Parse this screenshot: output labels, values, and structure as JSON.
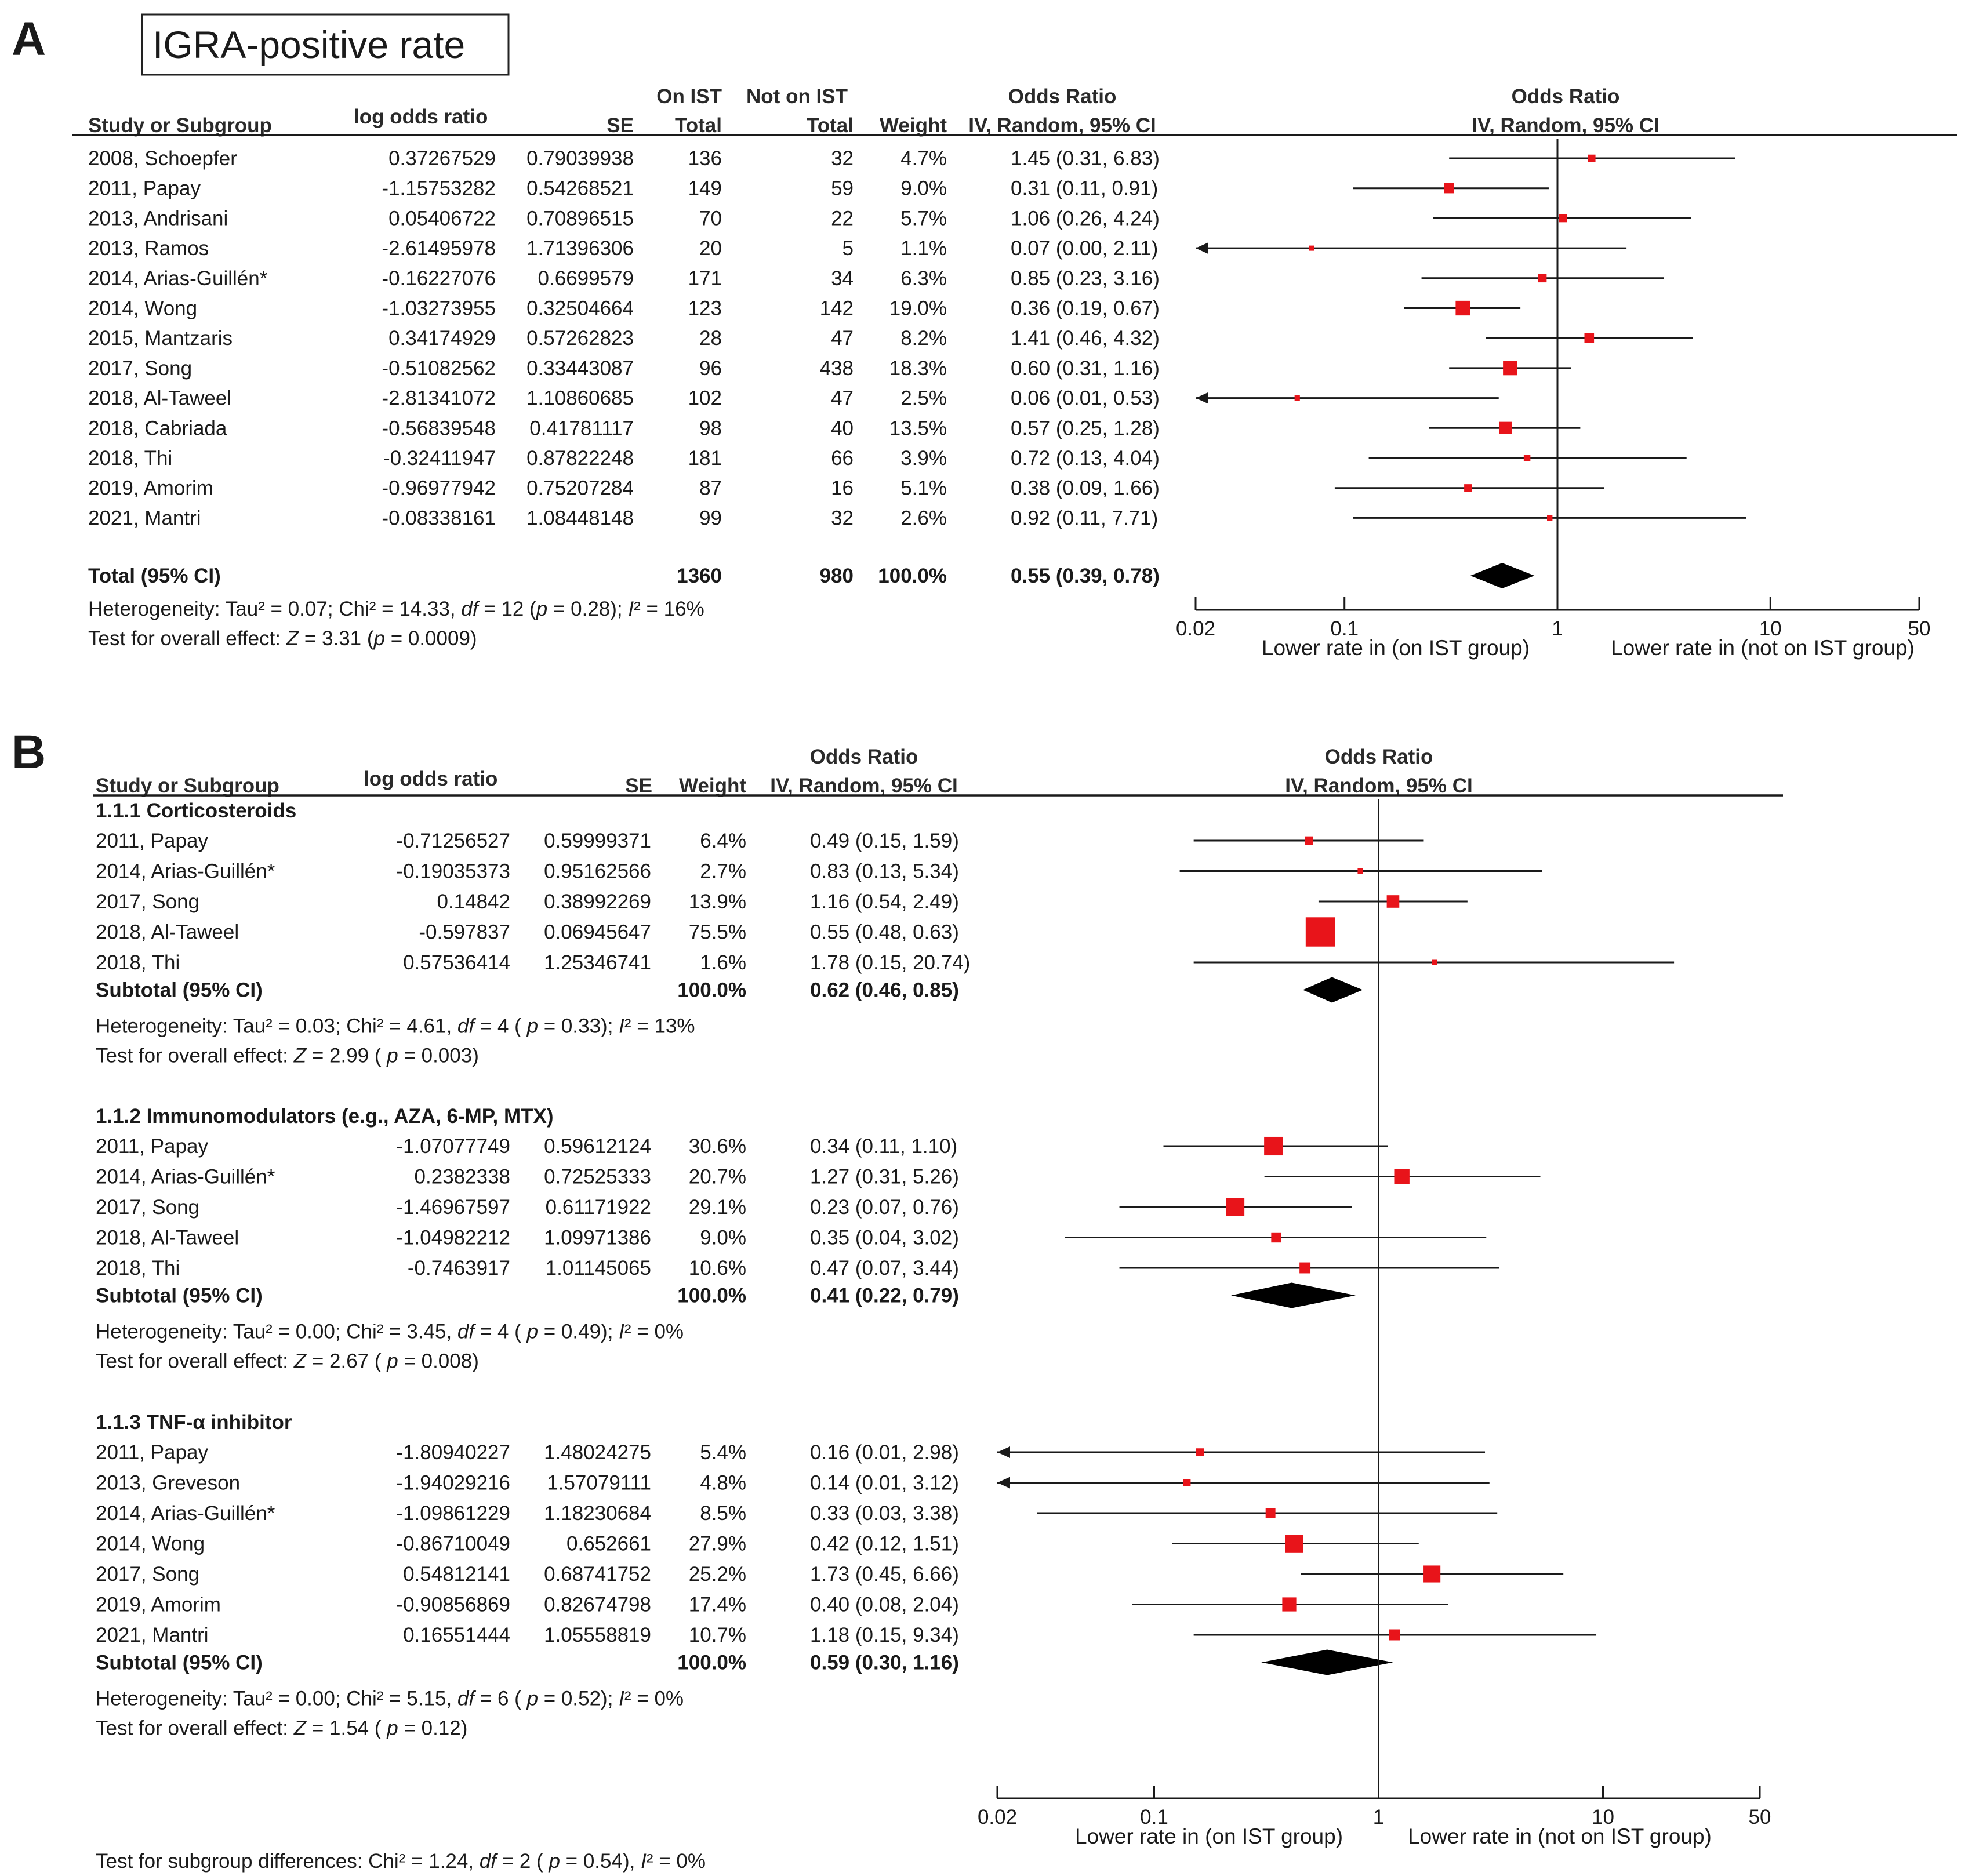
{
  "colors": {
    "marker": "#e8141a",
    "line": "#1a1a1a",
    "diamond": "#000000"
  },
  "panel_a": {
    "letter": "A",
    "title": "IGRA-positive rate",
    "headers": {
      "study": "Study or Subgroup",
      "lor": "log odds ratio",
      "se": "SE",
      "on_ist_1": "On IST",
      "on_ist_2": "Total",
      "not_ist_1": "Not on IST",
      "not_ist_2": "Total",
      "weight": "Weight",
      "or_table_1": "Odds Ratio",
      "or_table_2": "IV, Random, 95% CI",
      "or_plot_1": "Odds Ratio",
      "or_plot_2": "IV, Random, 95% CI"
    },
    "total": {
      "label": "Total (95% CI)",
      "on_ist": "1360",
      "not_ist": "980",
      "weight": "100.0%",
      "ci": "0.55 (0.39, 0.78)"
    },
    "het": {
      "pre": "Heterogeneity: Tau² = 0.07; Chi² = 14.33, ",
      "df": "df",
      "mid": " = 12 (",
      "p": "p",
      "post": " = 0.28); ",
      "i": "I",
      "isq": "² = 16%"
    },
    "overall": {
      "pre": "Test for overall effect: ",
      "z": "Z",
      "mid": " = 3.31 (",
      "p": "p",
      "post": " = 0.0009)"
    },
    "axis_ticks": [
      "0.02",
      "0.1",
      "1",
      "10",
      "50"
    ],
    "axis_left": "Lower rate in (on IST group)",
    "axis_right": "Lower rate in (not on IST group)"
  },
  "panel_b": {
    "letter": "B",
    "headers": {
      "study": "Study or Subgroup",
      "lor": "log odds ratio",
      "se": "SE",
      "weight": "Weight",
      "or_table_1": "Odds Ratio",
      "or_table_2": "IV, Random, 95% CI",
      "or_plot_1": "Odds Ratio",
      "or_plot_2": "IV, Random, 95% CI"
    },
    "subgroups": [
      {
        "title": "1.1.1 Corticosteroids",
        "subtotal_label": "Subtotal (95% CI)",
        "subtotal_weight": "100.0%",
        "subtotal_ci": "0.62 (0.46, 0.85)",
        "het": {
          "pre": "Heterogeneity: Tau² = 0.03; Chi² = 4.61, ",
          "df": "df",
          "mid": " = 4 ( ",
          "p": "p",
          "post": " = 0.33); ",
          "i": "I",
          "isq": "² = 13%"
        },
        "overall": {
          "pre": "Test for overall effect: ",
          "z": "Z",
          "mid": " = 2.99 ( ",
          "p": "p",
          "post": " = 0.003)"
        }
      },
      {
        "title": "1.1.2 Immunomodulators (e.g., AZA, 6-MP, MTX)",
        "subtotal_label": "Subtotal (95% CI)",
        "subtotal_weight": "100.0%",
        "subtotal_ci": "0.41 (0.22, 0.79)",
        "het": {
          "pre": "Heterogeneity: Tau² = 0.00; Chi² = 3.45, ",
          "df": "df",
          "mid": " = 4 ( ",
          "p": "p",
          "post": " = 0.49); ",
          "i": "I",
          "isq": "² = 0%"
        },
        "overall": {
          "pre": "Test for overall effect: ",
          "z": "Z",
          "mid": " = 2.67 ( ",
          "p": "p",
          "post": " = 0.008)"
        }
      },
      {
        "title": "1.1.3 TNF-α inhibitor",
        "subtotal_label": "Subtotal (95% CI)",
        "subtotal_weight": "100.0%",
        "subtotal_ci": "0.59 (0.30, 1.16)",
        "het": {
          "pre": "Heterogeneity: Tau² = 0.00; Chi² = 5.15, ",
          "df": "df",
          "mid": " = 6 ( ",
          "p": "p",
          "post": " = 0.52); ",
          "i": "I",
          "isq": "² = 0%"
        },
        "overall": {
          "pre": "Test for overall effect: ",
          "z": "Z",
          "mid": " = 1.54 ( ",
          "p": "p",
          "post": " = 0.12)"
        }
      }
    ],
    "subgroup_diff": {
      "pre": "Test for subgroup differences: Chi² = 1.24, ",
      "df": "df",
      "mid": " = 2 ( ",
      "p": "p",
      "post": " = 0.54), ",
      "i": "I",
      "isq": "² = 0%"
    },
    "axis_ticks": [
      "0.02",
      "0.1",
      "1",
      "10",
      "50"
    ],
    "axis_left": "Lower rate in (on IST group)",
    "axis_right": "Lower rate in (not on IST group)"
  },
  "chart_data": [
    {
      "type": "forest",
      "panel": "A",
      "title": "IGRA-positive rate",
      "xscale": "log",
      "xlim": [
        0.02,
        50
      ],
      "xticks": [
        0.02,
        0.1,
        1,
        10,
        50
      ],
      "studies": [
        {
          "label": "2008, Schoepfer",
          "lor": "0.37267529",
          "se": "0.79039938",
          "on_ist": "136",
          "not_ist": "32",
          "weight": "4.7%",
          "ci_text": "1.45 (0.31, 6.83)",
          "or": 1.45,
          "lo": 0.31,
          "hi": 6.83
        },
        {
          "label": "2011, Papay",
          "lor": "-1.15753282",
          "se": "0.54268521",
          "on_ist": "149",
          "not_ist": "59",
          "weight": "9.0%",
          "ci_text": "0.31 (0.11, 0.91)",
          "or": 0.31,
          "lo": 0.11,
          "hi": 0.91
        },
        {
          "label": "2013, Andrisani",
          "lor": "0.05406722",
          "se": "0.70896515",
          "on_ist": "70",
          "not_ist": "22",
          "weight": "5.7%",
          "ci_text": "1.06 (0.26, 4.24)",
          "or": 1.06,
          "lo": 0.26,
          "hi": 4.24
        },
        {
          "label": "2013, Ramos",
          "lor": "-2.61495978",
          "se": "1.71396306",
          "on_ist": "20",
          "not_ist": "5",
          "weight": "1.1%",
          "ci_text": "0.07 (0.00, 2.11)",
          "or": 0.07,
          "lo": 0.0,
          "hi": 2.11
        },
        {
          "label": "2014, Arias-Guillén*",
          "lor": "-0.16227076",
          "se": "0.6699579",
          "on_ist": "171",
          "not_ist": "34",
          "weight": "6.3%",
          "ci_text": "0.85 (0.23, 3.16)",
          "or": 0.85,
          "lo": 0.23,
          "hi": 3.16
        },
        {
          "label": "2014, Wong",
          "lor": "-1.03273955",
          "se": "0.32504664",
          "on_ist": "123",
          "not_ist": "142",
          "weight": "19.0%",
          "ci_text": "0.36 (0.19, 0.67)",
          "or": 0.36,
          "lo": 0.19,
          "hi": 0.67
        },
        {
          "label": "2015, Mantzaris",
          "lor": "0.34174929",
          "se": "0.57262823",
          "on_ist": "28",
          "not_ist": "47",
          "weight": "8.2%",
          "ci_text": "1.41 (0.46, 4.32)",
          "or": 1.41,
          "lo": 0.46,
          "hi": 4.32
        },
        {
          "label": "2017, Song",
          "lor": "-0.51082562",
          "se": "0.33443087",
          "on_ist": "96",
          "not_ist": "438",
          "weight": "18.3%",
          "ci_text": "0.60 (0.31, 1.16)",
          "or": 0.6,
          "lo": 0.31,
          "hi": 1.16
        },
        {
          "label": "2018, Al-Taweel",
          "lor": "-2.81341072",
          "se": "1.10860685",
          "on_ist": "102",
          "not_ist": "47",
          "weight": "2.5%",
          "ci_text": "0.06 (0.01, 0.53)",
          "or": 0.06,
          "lo": 0.01,
          "hi": 0.53
        },
        {
          "label": "2018, Cabriada",
          "lor": "-0.56839548",
          "se": "0.41781117",
          "on_ist": "98",
          "not_ist": "40",
          "weight": "13.5%",
          "ci_text": "0.57 (0.25, 1.28)",
          "or": 0.57,
          "lo": 0.25,
          "hi": 1.28
        },
        {
          "label": "2018, Thi",
          "lor": "-0.32411947",
          "se": "0.87822248",
          "on_ist": "181",
          "not_ist": "66",
          "weight": "3.9%",
          "ci_text": "0.72 (0.13, 4.04)",
          "or": 0.72,
          "lo": 0.13,
          "hi": 4.04
        },
        {
          "label": "2019, Amorim",
          "lor": "-0.96977942",
          "se": "0.75207284",
          "on_ist": "87",
          "not_ist": "16",
          "weight": "5.1%",
          "ci_text": "0.38 (0.09, 1.66)",
          "or": 0.38,
          "lo": 0.09,
          "hi": 1.66
        },
        {
          "label": "2021, Mantri",
          "lor": "-0.08338161",
          "se": "1.08448148",
          "on_ist": "99",
          "not_ist": "32",
          "weight": "2.6%",
          "ci_text": "0.92 (0.11, 7.71)",
          "or": 0.92,
          "lo": 0.11,
          "hi": 7.71
        }
      ],
      "pooled": {
        "or": 0.55,
        "lo": 0.39,
        "hi": 0.78
      }
    },
    {
      "type": "forest",
      "panel": "B",
      "xscale": "log",
      "xlim": [
        0.02,
        50
      ],
      "xticks": [
        0.02,
        0.1,
        1,
        10,
        50
      ],
      "subgroups": [
        {
          "name": "1.1.1 Corticosteroids",
          "studies": [
            {
              "label": "2011, Papay",
              "lor": "-0.71256527",
              "se": "0.59999371",
              "weight": "6.4%",
              "ci_text": "0.49 (0.15, 1.59)",
              "or": 0.49,
              "lo": 0.15,
              "hi": 1.59
            },
            {
              "label": "2014, Arias-Guillén*",
              "lor": "-0.19035373",
              "se": "0.95162566",
              "weight": "2.7%",
              "ci_text": "0.83 (0.13, 5.34)",
              "or": 0.83,
              "lo": 0.13,
              "hi": 5.34
            },
            {
              "label": "2017, Song",
              "lor": "0.14842",
              "se": "0.38992269",
              "weight": "13.9%",
              "ci_text": "1.16 (0.54, 2.49)",
              "or": 1.16,
              "lo": 0.54,
              "hi": 2.49
            },
            {
              "label": "2018, Al-Taweel",
              "lor": "-0.597837",
              "se": "0.06945647",
              "weight": "75.5%",
              "ci_text": "0.55 (0.48, 0.63)",
              "or": 0.55,
              "lo": 0.48,
              "hi": 0.63
            },
            {
              "label": "2018, Thi",
              "lor": "0.57536414",
              "se": "1.25346741",
              "weight": "1.6%",
              "ci_text": "1.78 (0.15, 20.74)",
              "or": 1.78,
              "lo": 0.15,
              "hi": 20.74
            }
          ],
          "pooled": {
            "or": 0.62,
            "lo": 0.46,
            "hi": 0.85
          }
        },
        {
          "name": "1.1.2 Immunomodulators (e.g., AZA, 6-MP, MTX)",
          "studies": [
            {
              "label": "2011, Papay",
              "lor": "-1.07077749",
              "se": "0.59612124",
              "weight": "30.6%",
              "ci_text": "0.34 (0.11, 1.10)",
              "or": 0.34,
              "lo": 0.11,
              "hi": 1.1
            },
            {
              "label": "2014, Arias-Guillén*",
              "lor": "0.2382338",
              "se": "0.72525333",
              "weight": "20.7%",
              "ci_text": "1.27 (0.31, 5.26)",
              "or": 1.27,
              "lo": 0.31,
              "hi": 5.26
            },
            {
              "label": "2017, Song",
              "lor": "-1.46967597",
              "se": "0.61171922",
              "weight": "29.1%",
              "ci_text": "0.23 (0.07, 0.76)",
              "or": 0.23,
              "lo": 0.07,
              "hi": 0.76
            },
            {
              "label": "2018, Al-Taweel",
              "lor": "-1.04982212",
              "se": "1.09971386",
              "weight": "9.0%",
              "ci_text": "0.35 (0.04, 3.02)",
              "or": 0.35,
              "lo": 0.04,
              "hi": 3.02
            },
            {
              "label": "2018, Thi",
              "lor": "-0.7463917",
              "se": "1.01145065",
              "weight": "10.6%",
              "ci_text": "0.47 (0.07, 3.44)",
              "or": 0.47,
              "lo": 0.07,
              "hi": 3.44
            }
          ],
          "pooled": {
            "or": 0.41,
            "lo": 0.22,
            "hi": 0.79
          }
        },
        {
          "name": "1.1.3 TNF-α inhibitor",
          "studies": [
            {
              "label": "2011, Papay",
              "lor": "-1.80940227",
              "se": "1.48024275",
              "weight": "5.4%",
              "ci_text": "0.16 (0.01, 2.98)",
              "or": 0.16,
              "lo": 0.01,
              "hi": 2.98
            },
            {
              "label": "2013, Greveson",
              "lor": "-1.94029216",
              "se": "1.57079111",
              "weight": "4.8%",
              "ci_text": "0.14 (0.01, 3.12)",
              "or": 0.14,
              "lo": 0.01,
              "hi": 3.12
            },
            {
              "label": "2014, Arias-Guillén*",
              "lor": "-1.09861229",
              "se": "1.18230684",
              "weight": "8.5%",
              "ci_text": "0.33 (0.03, 3.38)",
              "or": 0.33,
              "lo": 0.03,
              "hi": 3.38
            },
            {
              "label": "2014, Wong",
              "lor": "-0.86710049",
              "se": "0.652661",
              "weight": "27.9%",
              "ci_text": "0.42 (0.12, 1.51)",
              "or": 0.42,
              "lo": 0.12,
              "hi": 1.51
            },
            {
              "label": "2017, Song",
              "lor": "0.54812141",
              "se": "0.68741752",
              "weight": "25.2%",
              "ci_text": "1.73 (0.45, 6.66)",
              "or": 1.73,
              "lo": 0.45,
              "hi": 6.66
            },
            {
              "label": "2019, Amorim",
              "lor": "-0.90856869",
              "se": "0.82674798",
              "weight": "17.4%",
              "ci_text": "0.40 (0.08, 2.04)",
              "or": 0.4,
              "lo": 0.08,
              "hi": 2.04
            },
            {
              "label": "2021, Mantri",
              "lor": "0.16551444",
              "se": "1.05558819",
              "weight": "10.7%",
              "ci_text": "1.18 (0.15, 9.34)",
              "or": 1.18,
              "lo": 0.15,
              "hi": 9.34
            }
          ],
          "pooled": {
            "or": 0.59,
            "lo": 0.3,
            "hi": 1.16
          }
        }
      ]
    }
  ]
}
